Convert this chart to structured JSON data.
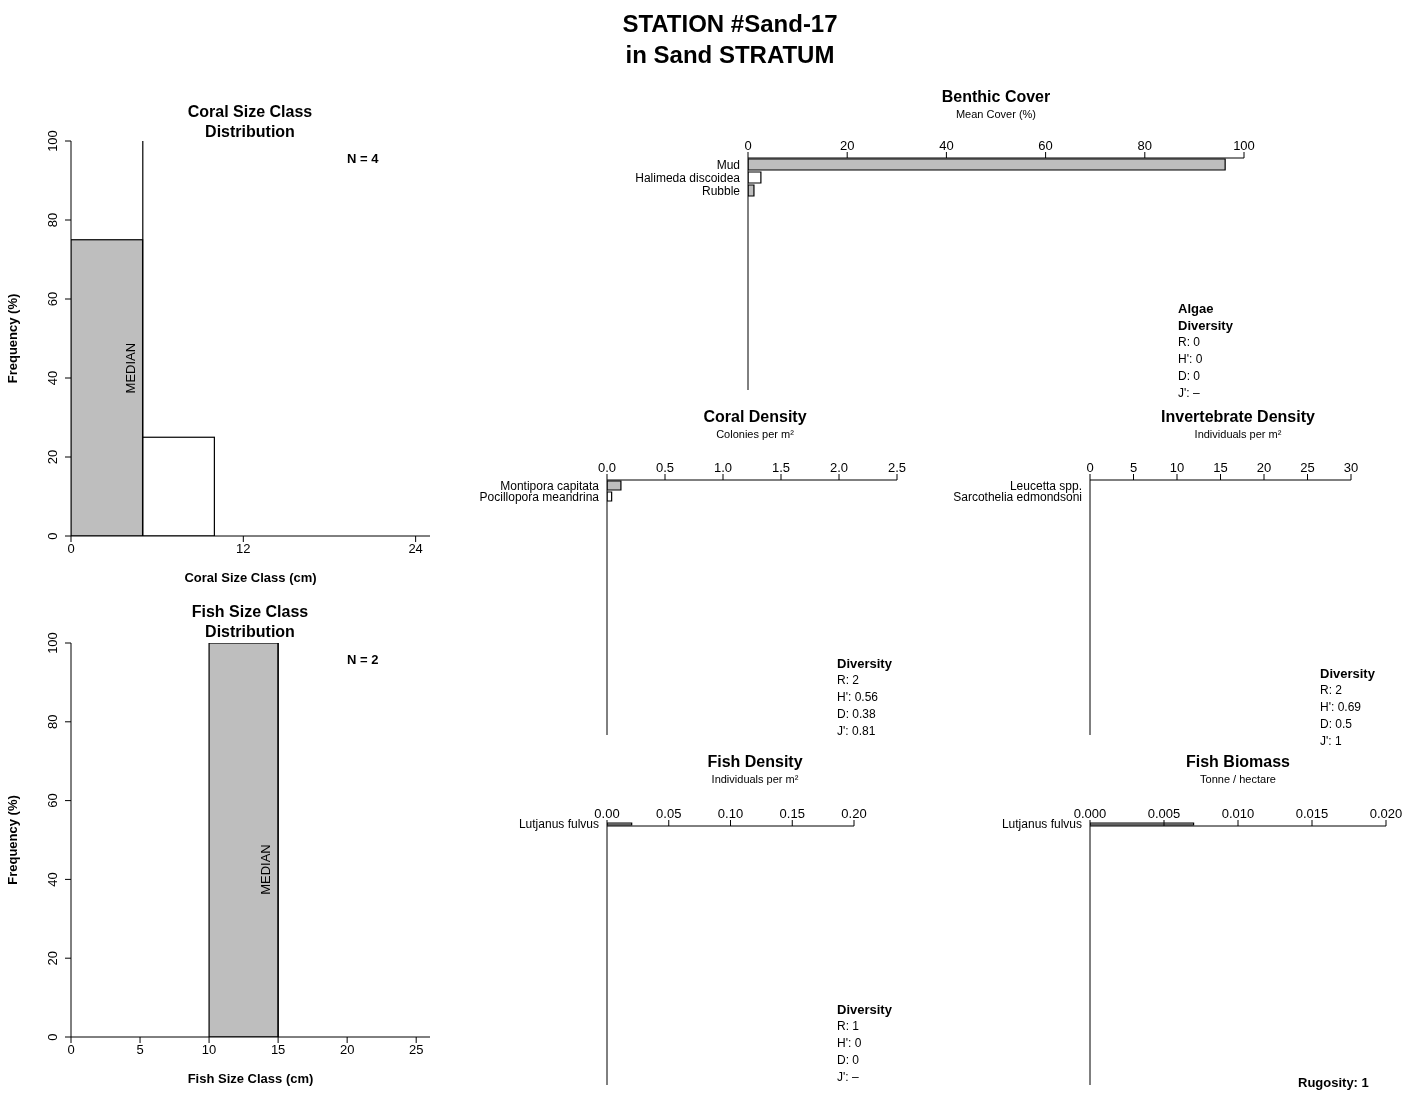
{
  "chart_data": [
    {
      "type": "other",
      "title": "STATION #Sand-17",
      "subtitle": "in Sand STRATUM"
    },
    {
      "type": "histogram",
      "title": "Coral Size Class Distribution",
      "xlabel": "Coral Size Class (cm)",
      "ylabel": "Frequency (%)",
      "bins": [
        0,
        5,
        10
      ],
      "values": [
        75,
        25
      ],
      "colors": [
        "#bebebe",
        "#ffffff"
      ],
      "xlim": [
        0,
        25
      ],
      "xticks": [
        0,
        12,
        24
      ],
      "ylim": [
        0,
        100
      ],
      "yticks": [
        0,
        20,
        40,
        60,
        80,
        100
      ],
      "ref_lines": [
        {
          "axis": "x",
          "value": 5,
          "label": "MEDIAN"
        }
      ],
      "annotations": [
        "N = 4"
      ]
    },
    {
      "type": "histogram",
      "title": "Fish Size Class Distribution",
      "xlabel": "Fish Size Class (cm)",
      "ylabel": "Frequency (%)",
      "bins": [
        10,
        15
      ],
      "values": [
        100
      ],
      "colors": [
        "#bebebe"
      ],
      "xlim": [
        0,
        26
      ],
      "xticks": [
        0,
        5,
        10,
        15,
        20,
        25
      ],
      "ylim": [
        0,
        100
      ],
      "yticks": [
        0,
        20,
        40,
        60,
        80,
        100
      ],
      "ref_lines": [
        {
          "axis": "x",
          "value": 15,
          "label": "MEDIAN"
        }
      ],
      "annotations": [
        "N = 2"
      ]
    },
    {
      "type": "bar",
      "orientation": "horizontal",
      "title": "Benthic Cover",
      "xlabel": "Mean Cover (%)",
      "categories": [
        "Mud",
        "Halimeda discoidea",
        "Rubble"
      ],
      "values": [
        96.2,
        2.6,
        1.2
      ],
      "colors": [
        "#bebebe",
        "#ffffff",
        "#bebebe"
      ],
      "xlim": [
        0,
        100
      ],
      "xticks": [
        0,
        20,
        40,
        60,
        80,
        100
      ],
      "annotations": [
        "Algae Diversity",
        "R: 0\nH': 0\nD: 0\nJ': –"
      ]
    },
    {
      "type": "bar",
      "orientation": "horizontal",
      "title": "Coral Density",
      "xlabel": "Colonies per m²",
      "categories": [
        "Montipora capitata",
        "Pocillopora meandrina"
      ],
      "values": [
        0.12,
        0.04
      ],
      "colors": [
        "#bebebe",
        "#ffffff"
      ],
      "xlim": [
        0,
        2.5
      ],
      "xticks": [
        {
          "value": 0,
          "label": "0.0"
        },
        0.5,
        {
          "value": 1,
          "label": "1.0"
        },
        1.5,
        {
          "value": 2,
          "label": "2.0"
        },
        2.5
      ],
      "annotations": [
        "Diversity",
        "R: 2\nH': 0.56\nD: 0.38\nJ': 0.81"
      ]
    },
    {
      "type": "bar",
      "orientation": "horizontal",
      "title": "Invertebrate Density",
      "xlabel": "Individuals per m²",
      "categories": [
        "Leucetta spp.",
        "Sarcothelia edmondsoni"
      ],
      "values": [
        0,
        0
      ],
      "colors": [
        "#bebebe",
        "#ffffff"
      ],
      "xlim": [
        0,
        30
      ],
      "xticks": [
        0,
        5,
        10,
        15,
        20,
        25,
        30
      ],
      "annotations": [
        "Diversity",
        "R: 2\nH': 0.69\nD: 0.5\nJ': 1"
      ]
    },
    {
      "type": "bar",
      "orientation": "horizontal",
      "title": "Fish Density",
      "xlabel": "Individuals per m²",
      "categories": [
        "Lutjanus fulvus"
      ],
      "values": [
        0.02
      ],
      "colors": [
        "#bebebe"
      ],
      "xlim": [
        0,
        0.2
      ],
      "xticks": [
        {
          "value": 0,
          "label": "0.00"
        },
        0.05,
        {
          "value": 0.1,
          "label": "0.10"
        },
        0.15,
        {
          "value": 0.2,
          "label": "0.20"
        }
      ],
      "annotations": [
        "Diversity",
        "R: 1\nH': 0\nD: 0\nJ': –"
      ]
    },
    {
      "type": "bar",
      "orientation": "horizontal",
      "title": "Fish Biomass",
      "xlabel": "Tonne / hectare",
      "categories": [
        "Lutjanus fulvus"
      ],
      "values": [
        0.007
      ],
      "colors": [
        "#bebebe"
      ],
      "xlim": [
        0,
        0.02
      ],
      "xticks": [
        {
          "value": 0,
          "label": "0.000"
        },
        0.005,
        {
          "value": 0.01,
          "label": "0.010"
        },
        0.015,
        {
          "value": 0.02,
          "label": "0.020"
        }
      ],
      "annotations": [
        "Rugosity: 1"
      ]
    }
  ]
}
